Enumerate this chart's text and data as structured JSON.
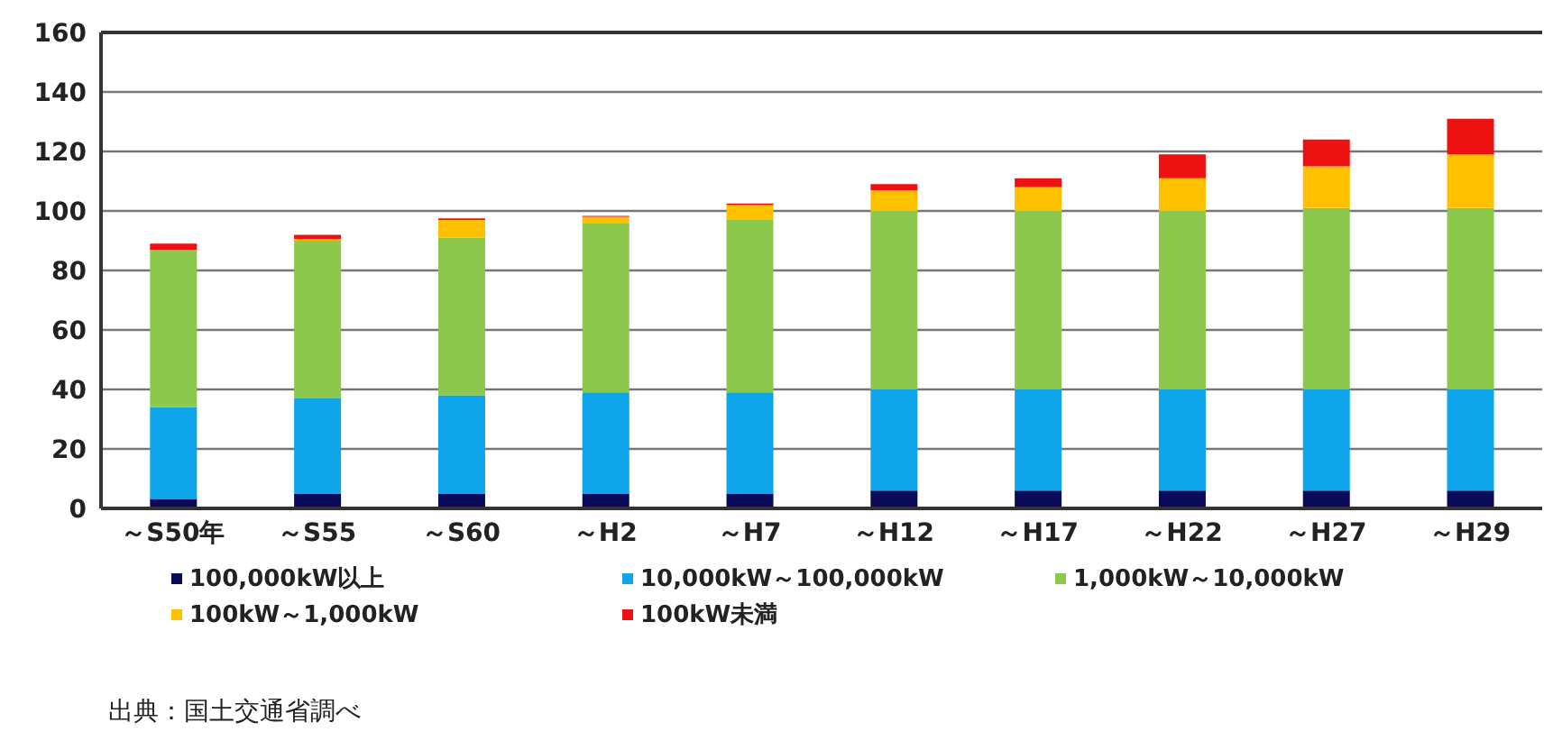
{
  "chart_data": {
    "type": "bar",
    "stacked": true,
    "categories": [
      "～S50年",
      "～S55",
      "～S60",
      "～H2",
      "～H7",
      "～H12",
      "～H17",
      "～H22",
      "～H27",
      "～H29"
    ],
    "series": [
      {
        "name": "100,000kW以上",
        "color": "#0a0a5a",
        "values": [
          3,
          5,
          5,
          5,
          5,
          6,
          6,
          6,
          6,
          6
        ]
      },
      {
        "name": "10,000kW～100,000kW",
        "color": "#0ea5ea",
        "values": [
          31,
          32,
          33,
          34,
          34,
          34,
          34,
          34,
          34,
          34
        ]
      },
      {
        "name": "1,000kW～10,000kW",
        "color": "#8cc84b",
        "values": [
          53,
          53,
          53,
          57,
          58,
          60,
          60,
          60,
          61,
          61
        ]
      },
      {
        "name": "100kW～1,000kW",
        "color": "#ffc000",
        "values": [
          0,
          0.5,
          6,
          2,
          5,
          7,
          8,
          11,
          14,
          18
        ]
      },
      {
        "name": "100kW未満",
        "color": "#ee1111",
        "values": [
          2,
          1.5,
          0.5,
          0.3,
          0.5,
          2,
          3,
          8,
          9,
          12
        ]
      }
    ],
    "ylim": [
      0,
      160
    ],
    "yticks": [
      0,
      20,
      40,
      60,
      80,
      100,
      120,
      140,
      160
    ],
    "grid": "y",
    "legend": "bottom",
    "annotations": [
      "出典：国土交通省調べ"
    ]
  }
}
